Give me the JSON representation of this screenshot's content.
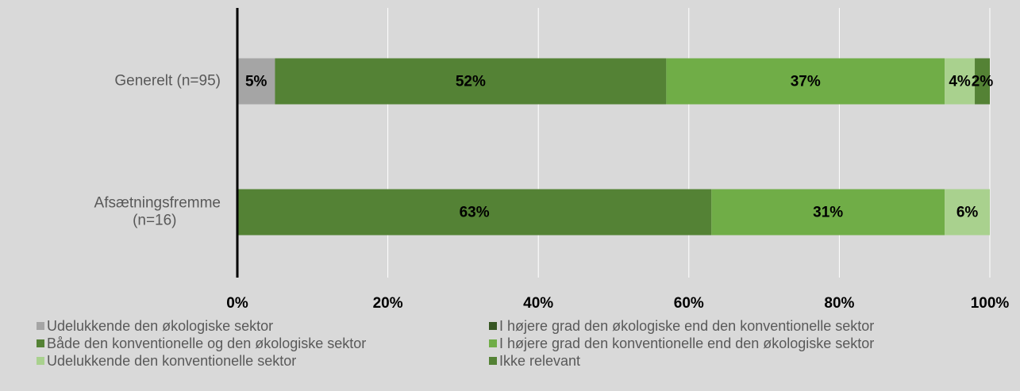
{
  "chart_data": {
    "type": "stacked_bar_horizontal",
    "categories": [
      "Generelt (n=95)",
      "Afsætningsfremme (n=16)"
    ],
    "series": [
      {
        "name": "Udelukkende den økologiske sektor",
        "color": "#a5a5a5",
        "values": [
          5,
          0
        ],
        "value_labels": [
          "5%",
          null
        ]
      },
      {
        "name": "I højere grad den økologiske end den konventionelle sektor",
        "color": "#375623",
        "values": [
          0,
          0
        ],
        "value_labels": [
          null,
          null
        ]
      },
      {
        "name": "Både den konventionelle og den økologiske sektor",
        "color": "#548235",
        "values": [
          52,
          63
        ],
        "value_labels": [
          "52%",
          "63%"
        ]
      },
      {
        "name": "I højere grad den konventionelle end den økologiske sektor",
        "color": "#70ad47",
        "values": [
          37,
          31
        ],
        "value_labels": [
          "37%",
          "31%"
        ]
      },
      {
        "name": "Udelukkende den konventionelle sektor",
        "color": "#a9d18e",
        "values": [
          4,
          6
        ],
        "value_labels": [
          "4%",
          "6%"
        ]
      },
      {
        "name": "Ikke relevant",
        "color": "#548235",
        "values": [
          2,
          0
        ],
        "value_labels": [
          "2%",
          null
        ]
      }
    ],
    "xlim": [
      0,
      100
    ],
    "xticks": [
      {
        "value": 0,
        "label": "0%"
      },
      {
        "value": 20,
        "label": "20%"
      },
      {
        "value": 40,
        "label": "40%"
      },
      {
        "value": 60,
        "label": "60%"
      },
      {
        "value": 80,
        "label": "80%"
      },
      {
        "value": 100,
        "label": "100%"
      }
    ],
    "grid": true
  }
}
